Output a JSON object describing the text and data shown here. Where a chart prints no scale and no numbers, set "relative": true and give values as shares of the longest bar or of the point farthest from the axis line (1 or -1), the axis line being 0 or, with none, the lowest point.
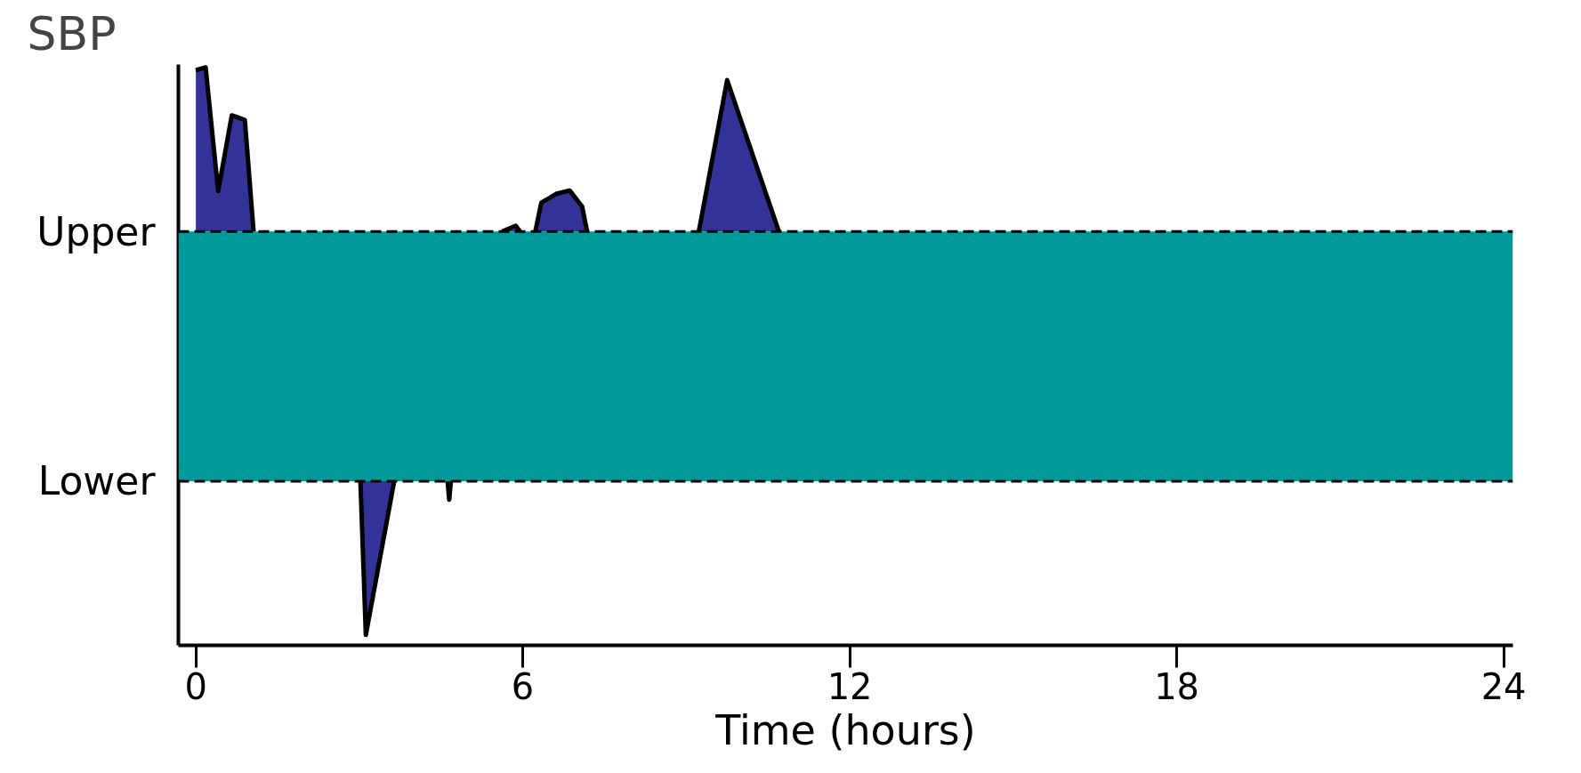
{
  "chart_data": {
    "type": "area",
    "relative": true,
    "ylabel": "SBP",
    "xlabel": "Time (hours)",
    "xlim": [
      -0.32,
      24.17
    ],
    "xticks": [
      0,
      6,
      12,
      18,
      24
    ],
    "grid": false,
    "series": [
      {
        "color": "#333399",
        "x": [
          0,
          0.18,
          0.41,
          0.66,
          0.9,
          1.06,
          1.5,
          3.02,
          3.12,
          3.64,
          4.0,
          4.62,
          4.65,
          4.68,
          5.0,
          5.62,
          5.87,
          5.95,
          6.1,
          6.23,
          6.34,
          6.61,
          6.86,
          7.09,
          7.18,
          8.0,
          9.23,
          9.75,
          10.7
        ],
        "values": [
          0.995,
          1.0,
          0.786,
          0.917,
          0.909,
          0.716,
          null,
          0.284,
          0.018,
          0.284,
          null,
          0.284,
          0.252,
          0.284,
          null,
          0.716,
          0.726,
          0.716,
          null,
          0.716,
          0.766,
          0.781,
          0.787,
          0.759,
          0.716,
          null,
          0.716,
          0.978,
          0.716
        ]
      }
    ],
    "bands": [
      {
        "axis": "y",
        "from": 0.284,
        "to": 0.716,
        "color": "#009999"
      }
    ],
    "ref_lines": [
      {
        "axis": "y",
        "value": 0.716,
        "label": "Upper",
        "line_style": "dashed",
        "color": "#000000"
      },
      {
        "axis": "y",
        "value": 0.284,
        "label": "Lower",
        "line_style": "dashed",
        "color": "#000000"
      }
    ]
  }
}
